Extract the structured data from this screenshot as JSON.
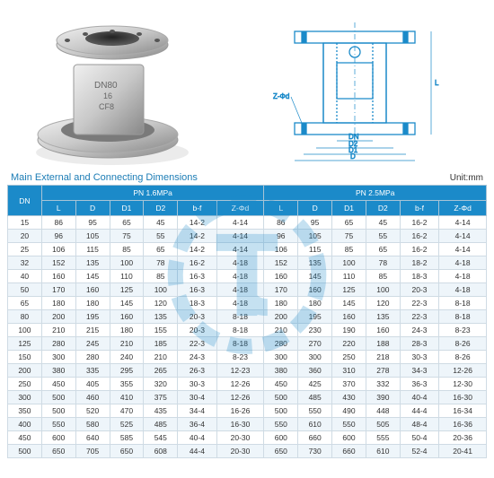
{
  "title": "Main External and Connecting Dimensions",
  "unit": "Unit:mm",
  "header_groups": [
    "DN",
    "PN 1.6MPa",
    "PN 2.5MPa"
  ],
  "sub_cols": [
    "L",
    "D",
    "D1",
    "D2",
    "b-f",
    "Z-Φd"
  ],
  "rows": [
    [
      "15",
      "86",
      "95",
      "65",
      "45",
      "14-2",
      "4-14",
      "86",
      "95",
      "65",
      "45",
      "16-2",
      "4-14"
    ],
    [
      "20",
      "96",
      "105",
      "75",
      "55",
      "14-2",
      "4-14",
      "96",
      "105",
      "75",
      "55",
      "16-2",
      "4-14"
    ],
    [
      "25",
      "106",
      "115",
      "85",
      "65",
      "14-2",
      "4-14",
      "106",
      "115",
      "85",
      "65",
      "16-2",
      "4-14"
    ],
    [
      "32",
      "152",
      "135",
      "100",
      "78",
      "16-2",
      "4-18",
      "152",
      "135",
      "100",
      "78",
      "18-2",
      "4-18"
    ],
    [
      "40",
      "160",
      "145",
      "110",
      "85",
      "16-3",
      "4-18",
      "160",
      "145",
      "110",
      "85",
      "18-3",
      "4-18"
    ],
    [
      "50",
      "170",
      "160",
      "125",
      "100",
      "16-3",
      "4-18",
      "170",
      "160",
      "125",
      "100",
      "20-3",
      "4-18"
    ],
    [
      "65",
      "180",
      "180",
      "145",
      "120",
      "18-3",
      "4-18",
      "180",
      "180",
      "145",
      "120",
      "22-3",
      "8-18"
    ],
    [
      "80",
      "200",
      "195",
      "160",
      "135",
      "20-3",
      "8-18",
      "200",
      "195",
      "160",
      "135",
      "22-3",
      "8-18"
    ],
    [
      "100",
      "210",
      "215",
      "180",
      "155",
      "20-3",
      "8-18",
      "210",
      "230",
      "190",
      "160",
      "24-3",
      "8-23"
    ],
    [
      "125",
      "280",
      "245",
      "210",
      "185",
      "22-3",
      "8-18",
      "280",
      "270",
      "220",
      "188",
      "28-3",
      "8-26"
    ],
    [
      "150",
      "300",
      "280",
      "240",
      "210",
      "24-3",
      "8-23",
      "300",
      "300",
      "250",
      "218",
      "30-3",
      "8-26"
    ],
    [
      "200",
      "380",
      "335",
      "295",
      "265",
      "26-3",
      "12-23",
      "380",
      "360",
      "310",
      "278",
      "34-3",
      "12-26"
    ],
    [
      "250",
      "450",
      "405",
      "355",
      "320",
      "30-3",
      "12-26",
      "450",
      "425",
      "370",
      "332",
      "36-3",
      "12-30"
    ],
    [
      "300",
      "500",
      "460",
      "410",
      "375",
      "30-4",
      "12-26",
      "500",
      "485",
      "430",
      "390",
      "40-4",
      "16-30"
    ],
    [
      "350",
      "500",
      "520",
      "470",
      "435",
      "34-4",
      "16-26",
      "500",
      "550",
      "490",
      "448",
      "44-4",
      "16-34"
    ],
    [
      "400",
      "550",
      "580",
      "525",
      "485",
      "36-4",
      "16-30",
      "550",
      "610",
      "550",
      "505",
      "48-4",
      "16-36"
    ],
    [
      "450",
      "600",
      "640",
      "585",
      "545",
      "40-4",
      "20-30",
      "600",
      "660",
      "600",
      "555",
      "50-4",
      "20-36"
    ],
    [
      "500",
      "650",
      "705",
      "650",
      "608",
      "44-4",
      "20-30",
      "650",
      "730",
      "660",
      "610",
      "52-4",
      "20-41"
    ]
  ],
  "diagram_labels": {
    "L": "L",
    "DN": "DN",
    "D2": "D2",
    "D1": "D1",
    "D": "D",
    "Z": "Z-Φd"
  },
  "photo_text": {
    "dn": "DN80",
    "pn": "16",
    "mat": "CF8"
  },
  "colors": {
    "brand": "#1b8ac9",
    "title": "#1b7cb5",
    "border": "#cfdbe4",
    "alt": "#eef5fa"
  }
}
